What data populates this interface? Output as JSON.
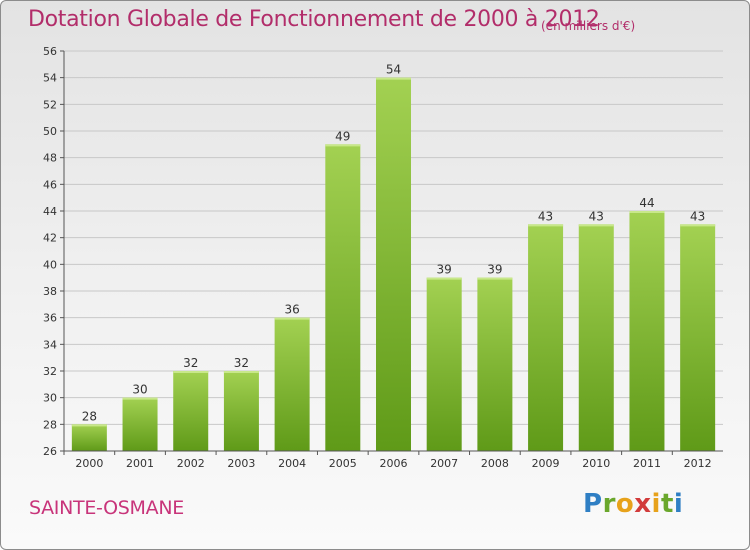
{
  "header": {
    "title": "Dotation Globale de Fonctionnement de 2000 à 2012",
    "subtitle": "(en milliers d'€)"
  },
  "footer": {
    "town": "SAINTE-OSMANE",
    "logo_letters": [
      {
        "ch": "P",
        "color": "#2f7fc4"
      },
      {
        "ch": "r",
        "color": "#6aa72c"
      },
      {
        "ch": "o",
        "color": "#e7a21b"
      },
      {
        "ch": "x",
        "color": "#d23b3b"
      },
      {
        "ch": "i",
        "color": "#e7a21b"
      },
      {
        "ch": "t",
        "color": "#6aa72c"
      },
      {
        "ch": "i",
        "color": "#2f7fc4"
      }
    ]
  },
  "chart_data": {
    "type": "bar",
    "title": "Dotation Globale de Fonctionnement de 2000 à 2012",
    "subtitle": "(en milliers d'€)",
    "categories": [
      "2000",
      "2001",
      "2002",
      "2003",
      "2004",
      "2005",
      "2006",
      "2007",
      "2008",
      "2009",
      "2010",
      "2011",
      "2012"
    ],
    "values": [
      28,
      30,
      32,
      32,
      36,
      49,
      54,
      39,
      39,
      43,
      43,
      44,
      43
    ],
    "ylim": [
      26,
      56
    ],
    "yticks": [
      26,
      28,
      30,
      32,
      34,
      36,
      38,
      40,
      42,
      44,
      46,
      48,
      50,
      52,
      54,
      56
    ],
    "grid": true,
    "bar_color_top": "#a3d152",
    "bar_color_bottom": "#5f9a18",
    "data_labels": true
  }
}
